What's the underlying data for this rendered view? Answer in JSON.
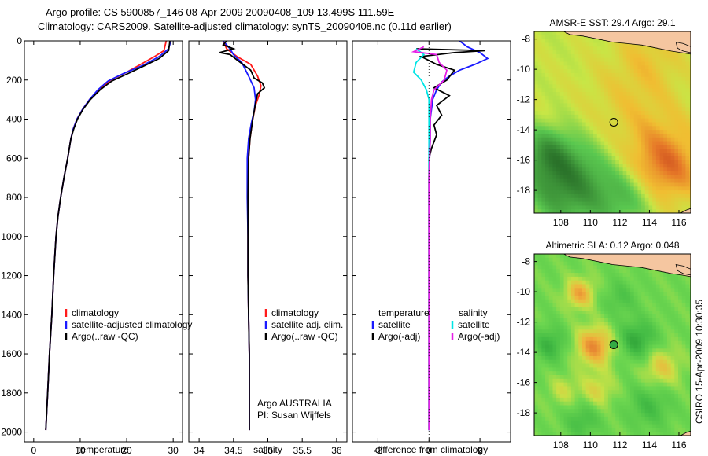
{
  "figure": {
    "title_line1": "Argo profile: CS 5900857_146 08-Apr-2009 20090408_109 13.499S 111.59E",
    "title_line2": "Climatology: CARS2009. Satellite-adjusted climatology: synTS_20090408.nc (0.11d earlier)",
    "footer": "CSIRO 15-Apr-2009 10:30:35"
  },
  "colors": {
    "climatology": "#ff1a1a",
    "satellite": "#1a1aff",
    "argo": "#000000",
    "sal_satellite": "#00e5e5",
    "sal_argo": "#e61ee6"
  },
  "chart_data": [
    {
      "id": "temperature",
      "type": "line",
      "xlabel": "temperature",
      "xlim": [
        -2,
        32
      ],
      "xticks": [
        0,
        10,
        20,
        30
      ],
      "ylim": [
        2050,
        0
      ],
      "yticks": [
        0,
        200,
        400,
        600,
        800,
        1000,
        1200,
        1400,
        1600,
        1800,
        2000
      ],
      "legend": [
        "climatology",
        "satellite-adjusted climatology",
        "Argo(..raw -QC)"
      ],
      "legend_position": "lower-right",
      "series": [
        {
          "name": "climatology",
          "color": "climatology",
          "points": [
            [
              28.5,
              0
            ],
            [
              28,
              50
            ],
            [
              26,
              80
            ],
            [
              23,
              120
            ],
            [
              20,
              160
            ],
            [
              16.5,
              200
            ],
            [
              14,
              250
            ],
            [
              12,
              300
            ],
            [
              10.5,
              350
            ],
            [
              9.3,
              400
            ],
            [
              8.5,
              450
            ],
            [
              8,
              500
            ],
            [
              7.3,
              600
            ],
            [
              6.5,
              700
            ],
            [
              5.8,
              800
            ],
            [
              5.2,
              900
            ],
            [
              4.8,
              1000
            ],
            [
              4.3,
              1200
            ],
            [
              3.9,
              1400
            ],
            [
              3.4,
              1600
            ],
            [
              3,
              1800
            ],
            [
              2.6,
              1990
            ]
          ]
        },
        {
          "name": "satellite-adjusted climatology",
          "color": "satellite",
          "points": [
            [
              29.5,
              0
            ],
            [
              29,
              40
            ],
            [
              27,
              80
            ],
            [
              23.5,
              125
            ],
            [
              19.5,
              165
            ],
            [
              16,
              205
            ],
            [
              13.8,
              250
            ],
            [
              12,
              300
            ],
            [
              10.5,
              350
            ],
            [
              9.3,
              400
            ],
            [
              8.5,
              450
            ],
            [
              8,
              500
            ],
            [
              7.3,
              600
            ],
            [
              6.5,
              700
            ],
            [
              5.8,
              800
            ],
            [
              5.2,
              900
            ],
            [
              4.8,
              1000
            ],
            [
              4.3,
              1200
            ],
            [
              3.9,
              1400
            ],
            [
              3.4,
              1600
            ],
            [
              3,
              1800
            ],
            [
              2.6,
              1990
            ]
          ]
        },
        {
          "name": "Argo(..raw -QC)",
          "color": "argo",
          "points": [
            [
              29.3,
              0
            ],
            [
              29,
              50
            ],
            [
              27,
              90
            ],
            [
              24,
              125
            ],
            [
              20.5,
              165
            ],
            [
              16.8,
              205
            ],
            [
              14.3,
              250
            ],
            [
              12.2,
              300
            ],
            [
              10.6,
              350
            ],
            [
              9.4,
              400
            ],
            [
              8.6,
              450
            ],
            [
              8,
              500
            ],
            [
              7.3,
              600
            ],
            [
              6.5,
              700
            ],
            [
              5.8,
              800
            ],
            [
              5.2,
              900
            ],
            [
              4.8,
              1000
            ],
            [
              4.3,
              1200
            ],
            [
              3.9,
              1400
            ],
            [
              3.4,
              1600
            ],
            [
              3,
              1800
            ],
            [
              2.6,
              1990
            ]
          ]
        }
      ]
    },
    {
      "id": "salinity",
      "type": "line",
      "xlabel": "salinity",
      "xlim": [
        33.85,
        36.15
      ],
      "xticks": [
        34,
        34.5,
        35,
        35.5,
        36
      ],
      "ylim": [
        2050,
        0
      ],
      "legend": [
        "climatology",
        "satellite adj. clim.",
        "Argo(..raw -QC)"
      ],
      "legend_position": "lower-right",
      "annotations": [
        "Argo AUSTRALIA",
        "PI: Susan Wijffels"
      ],
      "series": [
        {
          "name": "climatology",
          "color": "climatology",
          "points": [
            [
              34.35,
              0
            ],
            [
              34.4,
              40
            ],
            [
              34.55,
              80
            ],
            [
              34.75,
              120
            ],
            [
              34.85,
              180
            ],
            [
              34.9,
              230
            ],
            [
              34.87,
              280
            ],
            [
              34.82,
              330
            ],
            [
              34.78,
              400
            ],
            [
              34.74,
              500
            ],
            [
              34.72,
              600
            ],
            [
              34.71,
              800
            ],
            [
              34.71,
              1000
            ],
            [
              34.71,
              1200
            ],
            [
              34.72,
              1400
            ],
            [
              34.73,
              1600
            ],
            [
              34.73,
              1800
            ],
            [
              34.73,
              1990
            ]
          ]
        },
        {
          "name": "satellite adj. clim.",
          "color": "satellite",
          "points": [
            [
              34.35,
              0
            ],
            [
              34.45,
              40
            ],
            [
              34.5,
              70
            ],
            [
              34.62,
              110
            ],
            [
              34.72,
              180
            ],
            [
              34.8,
              240
            ],
            [
              34.82,
              300
            ],
            [
              34.8,
              360
            ],
            [
              34.76,
              420
            ],
            [
              34.72,
              500
            ],
            [
              34.7,
              600
            ],
            [
              34.7,
              800
            ],
            [
              34.71,
              1000
            ],
            [
              34.71,
              1200
            ],
            [
              34.72,
              1400
            ],
            [
              34.73,
              1600
            ],
            [
              34.73,
              1800
            ],
            [
              34.73,
              1990
            ]
          ]
        },
        {
          "name": "Argo(..raw -QC)",
          "color": "argo",
          "points": [
            [
              34.4,
              0
            ],
            [
              34.35,
              20
            ],
            [
              34.5,
              40
            ],
            [
              34.3,
              60
            ],
            [
              34.45,
              70
            ],
            [
              34.6,
              110
            ],
            [
              34.75,
              150
            ],
            [
              34.8,
              190
            ],
            [
              34.92,
              215
            ],
            [
              34.95,
              240
            ],
            [
              34.85,
              270
            ],
            [
              34.82,
              320
            ],
            [
              34.78,
              400
            ],
            [
              34.74,
              500
            ],
            [
              34.72,
              600
            ],
            [
              34.71,
              800
            ],
            [
              34.71,
              1000
            ],
            [
              34.71,
              1200
            ],
            [
              34.72,
              1400
            ],
            [
              34.73,
              1600
            ],
            [
              34.73,
              1800
            ],
            [
              34.73,
              1990
            ]
          ]
        }
      ]
    },
    {
      "id": "difference",
      "type": "line",
      "xlabel": "difference from climatology",
      "xlim": [
        -3,
        3.2
      ],
      "xticks": [
        -2,
        0,
        2
      ],
      "ylim": [
        2050,
        0
      ],
      "legend": [
        "temperature",
        "salinity",
        "satellite",
        "satellite",
        "Argo(-adj)",
        "Argo(-adj)"
      ],
      "legend_position": "lower-right",
      "series": [
        {
          "name": "temperature satellite",
          "color": "satellite",
          "points": [
            [
              1.2,
              0
            ],
            [
              1.5,
              30
            ],
            [
              2,
              60
            ],
            [
              2.3,
              90
            ],
            [
              1.8,
              120
            ],
            [
              1.2,
              150
            ],
            [
              0.8,
              180
            ],
            [
              0.5,
              210
            ],
            [
              0.3,
              250
            ],
            [
              0.15,
              300
            ],
            [
              0.1,
              350
            ],
            [
              0.05,
              400
            ],
            [
              0.05,
              500
            ],
            [
              0,
              700
            ],
            [
              0,
              1000
            ],
            [
              0,
              1500
            ],
            [
              0,
              1990
            ]
          ]
        },
        {
          "name": "temperature Argo(-adj)",
          "color": "argo",
          "points": [
            [
              -0.5,
              40
            ],
            [
              2.2,
              50
            ],
            [
              1,
              60
            ],
            [
              -0.3,
              80
            ],
            [
              0.3,
              120
            ],
            [
              1,
              150
            ],
            [
              0.7,
              200
            ],
            [
              0.2,
              240
            ],
            [
              0.8,
              280
            ],
            [
              0.3,
              330
            ],
            [
              0.5,
              380
            ],
            [
              0.2,
              430
            ],
            [
              0.3,
              480
            ],
            [
              0.1,
              550
            ],
            [
              0,
              600
            ],
            [
              0,
              1000
            ],
            [
              0,
              1500
            ],
            [
              0,
              1990
            ]
          ]
        },
        {
          "name": "salinity satellite",
          "color": "sal_satellite",
          "points": [
            [
              -0.5,
              40
            ],
            [
              -0.2,
              70
            ],
            [
              -0.5,
              110
            ],
            [
              -0.6,
              160
            ],
            [
              -0.3,
              200
            ],
            [
              -0.1,
              250
            ],
            [
              0,
              300
            ],
            [
              0,
              500
            ],
            [
              0,
              1000
            ],
            [
              0,
              1500
            ],
            [
              0,
              1990
            ]
          ]
        },
        {
          "name": "salinity Argo(-adj)",
          "color": "sal_argo",
          "points": [
            [
              -0.2,
              30
            ],
            [
              -0.6,
              55
            ],
            [
              0.3,
              70
            ],
            [
              0.4,
              110
            ],
            [
              0.7,
              150
            ],
            [
              0.6,
              200
            ],
            [
              0.2,
              250
            ],
            [
              0.1,
              300
            ],
            [
              0.05,
              400
            ],
            [
              0.05,
              500
            ],
            [
              0,
              700
            ],
            [
              0,
              1500
            ],
            [
              0,
              1990
            ]
          ]
        }
      ]
    },
    {
      "id": "sst_map",
      "type": "heatmap",
      "title": "AMSR-E SST: 29.4 Argo: 29.1",
      "xlim": [
        106.2,
        116.8
      ],
      "ylim": [
        -19.5,
        -7.5
      ],
      "xticks": [
        108,
        110,
        112,
        114,
        116
      ],
      "yticks": [
        -8,
        -10,
        -12,
        -14,
        -16,
        -18
      ],
      "argo_location": [
        111.59,
        -13.499
      ]
    },
    {
      "id": "sla_map",
      "type": "heatmap",
      "title": "Altimetric SLA: 0.12 Argo: 0.048",
      "xlim": [
        106.2,
        116.8
      ],
      "ylim": [
        -19.5,
        -7.5
      ],
      "xticks": [
        108,
        110,
        112,
        114,
        116
      ],
      "yticks": [
        -8,
        -10,
        -12,
        -14,
        -16,
        -18
      ],
      "argo_location": [
        111.59,
        -13.499
      ]
    }
  ]
}
